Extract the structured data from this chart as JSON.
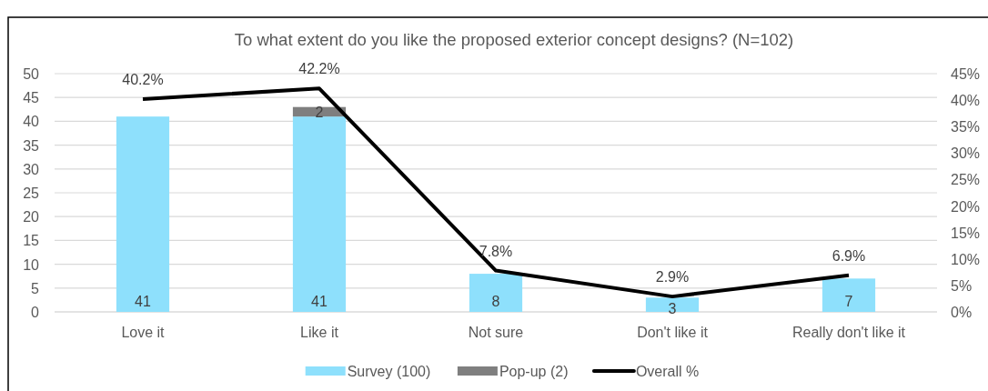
{
  "chart_data": {
    "type": "bar",
    "title": "To what extent do you like the proposed exterior concept designs? (N=102)",
    "categories": [
      "Love it",
      "Like it",
      "Not sure",
      "Don't like it",
      "Really don't like it"
    ],
    "stacked": true,
    "series": [
      {
        "name": "Survey (100)",
        "color": "#8ee0fc",
        "values": [
          41,
          41,
          8,
          3,
          7
        ],
        "value_labels": [
          "41",
          "41",
          "8",
          "3",
          "7"
        ]
      },
      {
        "name": "Pop-up (2)",
        "color": "#7f7f7f",
        "values": [
          null,
          2,
          null,
          null,
          null
        ],
        "value_labels": [
          null,
          "2",
          null,
          null,
          null
        ]
      },
      {
        "name": "Overall %",
        "type": "line",
        "axis": "y2",
        "color": "#000000",
        "values": [
          40.2,
          42.2,
          7.8,
          2.9,
          6.9
        ],
        "value_labels": [
          "40.2%",
          "42.2%",
          "7.8%",
          "2.9%",
          "6.9%"
        ]
      }
    ],
    "ylim": [
      0,
      50
    ],
    "yticks": [
      0,
      5,
      10,
      15,
      20,
      25,
      30,
      35,
      40,
      45,
      50
    ],
    "y2lim": [
      0,
      45
    ],
    "y2ticks": [
      {
        "value": 0,
        "label": "0%"
      },
      {
        "value": 5,
        "label": "5%"
      },
      {
        "value": 10,
        "label": "10%"
      },
      {
        "value": 15,
        "label": "15%"
      },
      {
        "value": 20,
        "label": "20%"
      },
      {
        "value": 25,
        "label": "25%"
      },
      {
        "value": 30,
        "label": "30%"
      },
      {
        "value": 35,
        "label": "35%"
      },
      {
        "value": 40,
        "label": "40%"
      },
      {
        "value": 45,
        "label": "45%"
      }
    ],
    "grid": "y",
    "legend": "bottom",
    "marker": "none",
    "line_style": "solid"
  }
}
